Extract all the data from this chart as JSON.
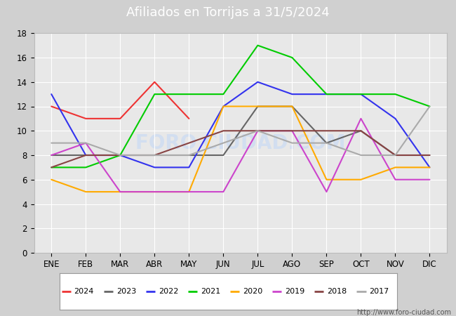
{
  "title": "Afiliados en Torrijas a 31/5/2024",
  "title_bg_color": "#4472c4",
  "title_text_color": "white",
  "ylim": [
    0,
    18
  ],
  "yticks": [
    0,
    2,
    4,
    6,
    8,
    10,
    12,
    14,
    16,
    18
  ],
  "months": [
    "ENE",
    "FEB",
    "MAR",
    "ABR",
    "MAY",
    "JUN",
    "JUL",
    "AGO",
    "SEP",
    "OCT",
    "NOV",
    "DIC"
  ],
  "plot_bg_color": "#e8e8e8",
  "grid_color": "#ffffff",
  "watermark": "FORO CIUDAD.COM",
  "url": "http://www.foro-ciudad.com",
  "series": [
    {
      "label": "2024",
      "color": "#ee3333",
      "data": [
        12,
        11,
        11,
        14,
        11,
        null,
        null,
        null,
        null,
        null,
        null,
        null
      ]
    },
    {
      "label": "2023",
      "color": "#666666",
      "data": [
        8,
        8,
        8,
        8,
        8,
        8,
        12,
        12,
        9,
        10,
        8,
        8
      ]
    },
    {
      "label": "2022",
      "color": "#3333ee",
      "data": [
        13,
        8,
        8,
        7,
        7,
        12,
        14,
        13,
        13,
        13,
        11,
        7
      ]
    },
    {
      "label": "2021",
      "color": "#00cc00",
      "data": [
        7,
        7,
        8,
        13,
        13,
        13,
        17,
        16,
        13,
        13,
        13,
        12
      ]
    },
    {
      "label": "2020",
      "color": "#ffaa00",
      "data": [
        6,
        5,
        5,
        5,
        5,
        12,
        12,
        12,
        6,
        6,
        7,
        7
      ]
    },
    {
      "label": "2019",
      "color": "#cc44cc",
      "data": [
        8,
        9,
        5,
        5,
        5,
        5,
        10,
        10,
        5,
        11,
        6,
        6
      ]
    },
    {
      "label": "2018",
      "color": "#884444",
      "data": [
        7,
        8,
        8,
        8,
        9,
        10,
        10,
        10,
        10,
        10,
        8,
        8
      ]
    },
    {
      "label": "2017",
      "color": "#aaaaaa",
      "data": [
        9,
        9,
        8,
        8,
        8,
        9,
        10,
        9,
        9,
        8,
        8,
        12
      ]
    }
  ]
}
